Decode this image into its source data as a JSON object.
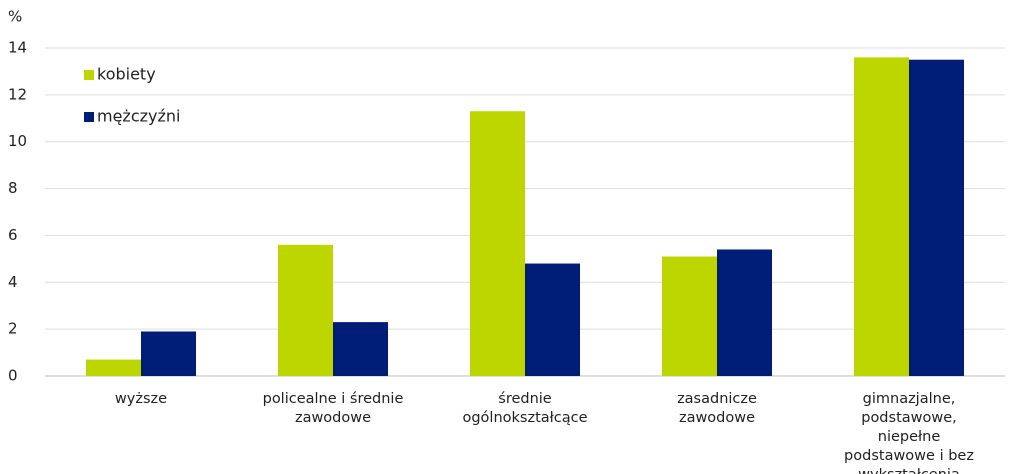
{
  "chart_data": {
    "type": "bar",
    "y_label": "%",
    "categories": [
      "wyższe",
      "policealne i średnie zawodowe",
      "średnie ogólnokształcące",
      "zasadnicze zawodowe",
      "gimnazjalne, podstawowe, niepełne podstawowe i bez wykształcenia"
    ],
    "series": [
      {
        "name": "kobiety",
        "color": "#bed600",
        "values": [
          0.7,
          5.6,
          11.3,
          5.1,
          13.6
        ]
      },
      {
        "name": "mężczyźni",
        "color": "#001d77",
        "values": [
          1.9,
          2.3,
          4.8,
          5.4,
          13.5
        ]
      }
    ],
    "ylim": [
      0,
      14
    ],
    "yticks": [
      0,
      2,
      4,
      6,
      8,
      10,
      12,
      14
    ],
    "grid": true,
    "legend": "top-left"
  }
}
